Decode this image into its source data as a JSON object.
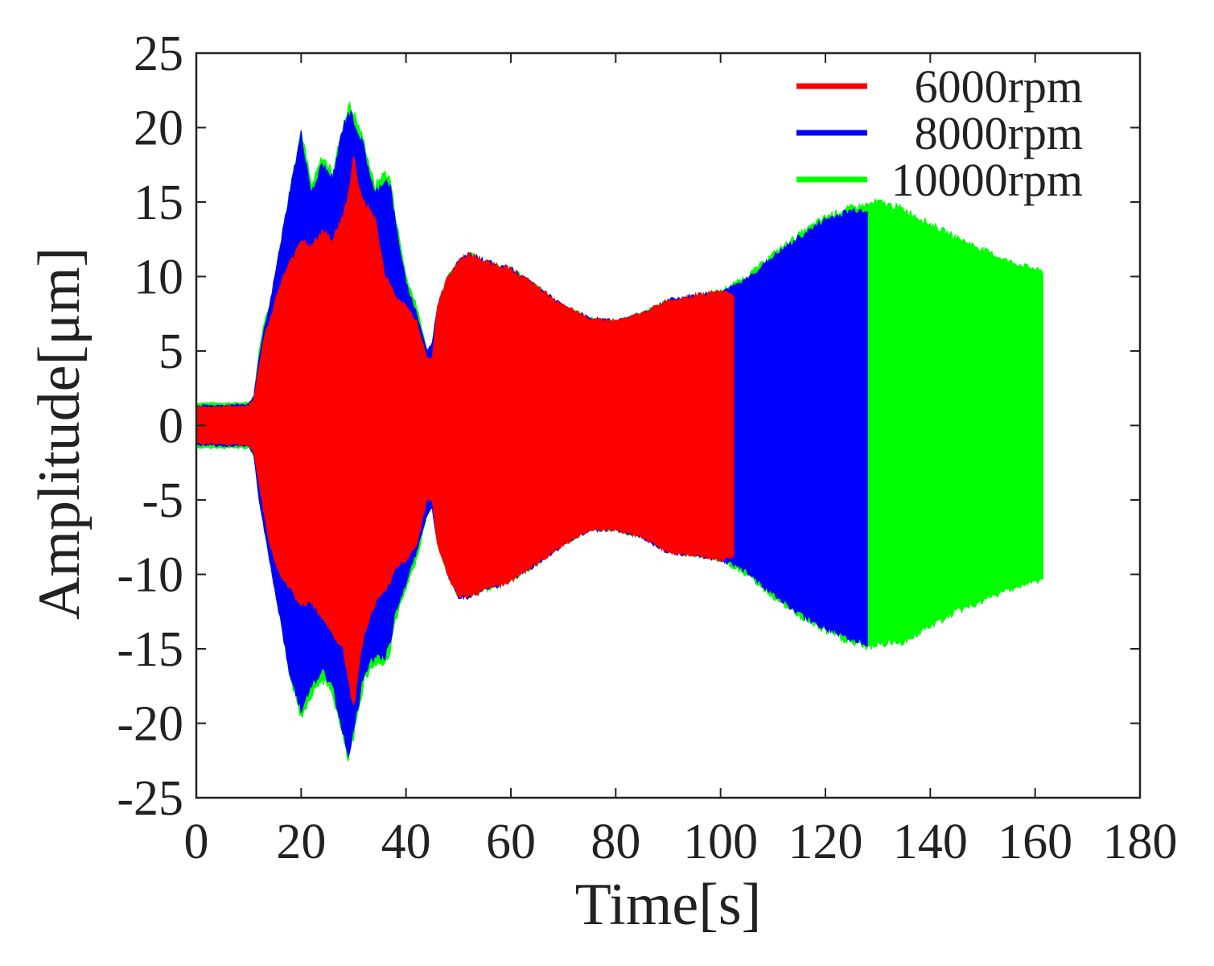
{
  "chart_data": {
    "type": "area",
    "title": "",
    "xlabel": "Time[s]",
    "ylabel": "Amplitude[μm]",
    "xlim": [
      0,
      180
    ],
    "ylim": [
      -25,
      25
    ],
    "xticks": [
      "0",
      "20",
      "40",
      "60",
      "80",
      "100",
      "120",
      "140",
      "160",
      "180"
    ],
    "yticks": [
      "25",
      "20",
      "15",
      "10",
      "5",
      "0",
      "-5",
      "-10",
      "-15",
      "-20",
      "-25"
    ],
    "grid": false,
    "legend_position": "top-right",
    "series": [
      {
        "name": "10000rpm",
        "color": "#00ff00",
        "time": [
          0,
          10,
          11,
          12,
          13,
          14,
          16,
          18,
          20,
          22,
          24,
          26,
          28,
          29,
          30,
          31,
          32,
          34,
          36,
          37,
          38,
          40,
          42,
          44,
          45,
          46,
          48,
          50,
          52,
          55,
          58,
          60,
          65,
          70,
          75,
          80,
          85,
          90,
          95,
          100,
          102.5,
          105,
          110,
          115,
          120,
          125,
          128,
          130,
          135,
          140,
          145,
          150,
          155,
          160,
          161.5
        ],
        "upper": [
          1.5,
          1.5,
          2,
          5,
          7,
          8,
          12,
          16,
          19.8,
          16,
          18,
          17,
          20,
          21.5,
          21,
          20,
          19,
          16,
          17,
          16.5,
          14,
          10,
          8,
          5,
          5.5,
          8,
          10,
          11,
          11.5,
          11,
          10.7,
          10.5,
          9.3,
          8,
          7.2,
          7,
          7.5,
          8.4,
          8.7,
          9,
          9.5,
          10,
          11.5,
          12.8,
          14,
          14.6,
          14.8,
          15,
          14.5,
          13.5,
          12.6,
          11.8,
          11,
          10.5,
          10.3
        ],
        "lower": [
          -1.5,
          -1.5,
          -2,
          -5,
          -7,
          -9,
          -13,
          -17,
          -19.5,
          -18,
          -17,
          -18,
          -21,
          -22.5,
          -21,
          -19,
          -17,
          -16,
          -16,
          -15,
          -13,
          -11,
          -9,
          -6,
          -5.5,
          -8,
          -10,
          -11.5,
          -11.5,
          -11,
          -10.7,
          -10.4,
          -9.3,
          -8,
          -7,
          -7,
          -7.5,
          -8.5,
          -8.7,
          -9,
          -9.5,
          -10,
          -11.5,
          -12.8,
          -13.8,
          -14.6,
          -14.9,
          -14.7,
          -14.5,
          -13.5,
          -12.5,
          -11.8,
          -11,
          -10.5,
          -10.3
        ]
      },
      {
        "name": "8000rpm",
        "color": "#0000ff",
        "time": [
          0,
          10,
          11,
          12,
          13,
          14,
          16,
          18,
          20,
          22,
          24,
          26,
          28,
          29,
          30,
          31,
          32,
          34,
          36,
          37,
          38,
          40,
          42,
          44,
          45,
          46,
          48,
          50,
          52,
          55,
          58,
          60,
          65,
          70,
          75,
          80,
          85,
          90,
          95,
          100,
          102.5,
          105,
          110,
          115,
          120,
          125,
          128
        ],
        "upper": [
          1.3,
          1.4,
          2,
          4.5,
          6.5,
          8,
          12,
          16,
          19.5,
          15.5,
          17.5,
          16.5,
          20,
          21,
          20.5,
          19.5,
          18.5,
          15.5,
          16.5,
          16,
          13.5,
          9.5,
          7.5,
          5,
          5.5,
          8,
          10,
          11,
          11.5,
          11,
          10.7,
          10.5,
          9.3,
          8,
          7.2,
          7,
          7.5,
          8.4,
          8.7,
          9,
          9.3,
          9.8,
          11.3,
          12.6,
          13.8,
          14.4,
          14.5
        ],
        "lower": [
          -1.3,
          -1.4,
          -2,
          -5,
          -7,
          -9,
          -13,
          -17,
          -19,
          -17.5,
          -16.5,
          -17.5,
          -20.5,
          -22,
          -20.5,
          -18.5,
          -16.5,
          -15.5,
          -15.5,
          -14.5,
          -12.5,
          -10.5,
          -8.5,
          -6,
          -5.5,
          -8,
          -10,
          -11.5,
          -11.5,
          -11,
          -10.7,
          -10.4,
          -9.3,
          -8,
          -7,
          -7,
          -7.5,
          -8.5,
          -8.7,
          -9,
          -9.3,
          -9.8,
          -11.3,
          -12.6,
          -13.6,
          -14.3,
          -14.6
        ]
      },
      {
        "name": "6000rpm",
        "color": "#ff0000",
        "time": [
          0,
          10,
          11,
          12,
          13,
          14,
          16,
          18,
          20,
          22,
          24,
          26,
          28,
          29,
          30,
          31,
          32,
          34,
          36,
          37,
          38,
          40,
          42,
          44,
          45,
          46,
          48,
          50,
          52,
          55,
          58,
          60,
          65,
          70,
          75,
          80,
          85,
          90,
          95,
          100,
          102.5
        ],
        "upper": [
          1.2,
          1.3,
          1.8,
          4,
          6,
          7,
          9.5,
          11,
          12.5,
          12,
          13,
          12.5,
          14,
          15.5,
          18,
          16,
          15,
          14,
          10,
          9.5,
          8.5,
          8,
          7,
          4.5,
          4.5,
          8,
          10,
          11,
          11.5,
          11,
          10.7,
          10.5,
          9.3,
          8,
          7.2,
          7,
          7.5,
          8.4,
          8.7,
          9,
          8.8
        ],
        "lower": [
          -1.2,
          -1.3,
          -1.8,
          -4,
          -6,
          -8,
          -10,
          -11,
          -12,
          -12,
          -13,
          -14,
          -15,
          -17,
          -19,
          -16,
          -14,
          -12,
          -11,
          -10.5,
          -9.5,
          -9,
          -8,
          -5,
          -5,
          -8,
          -10,
          -11.5,
          -11.5,
          -11,
          -10.7,
          -10.4,
          -9.3,
          -8,
          -7,
          -7,
          -7.5,
          -8.5,
          -8.7,
          -9,
          -8.8
        ]
      }
    ],
    "legend": [
      "6000rpm",
      "8000rpm",
      "10000rpm"
    ]
  }
}
